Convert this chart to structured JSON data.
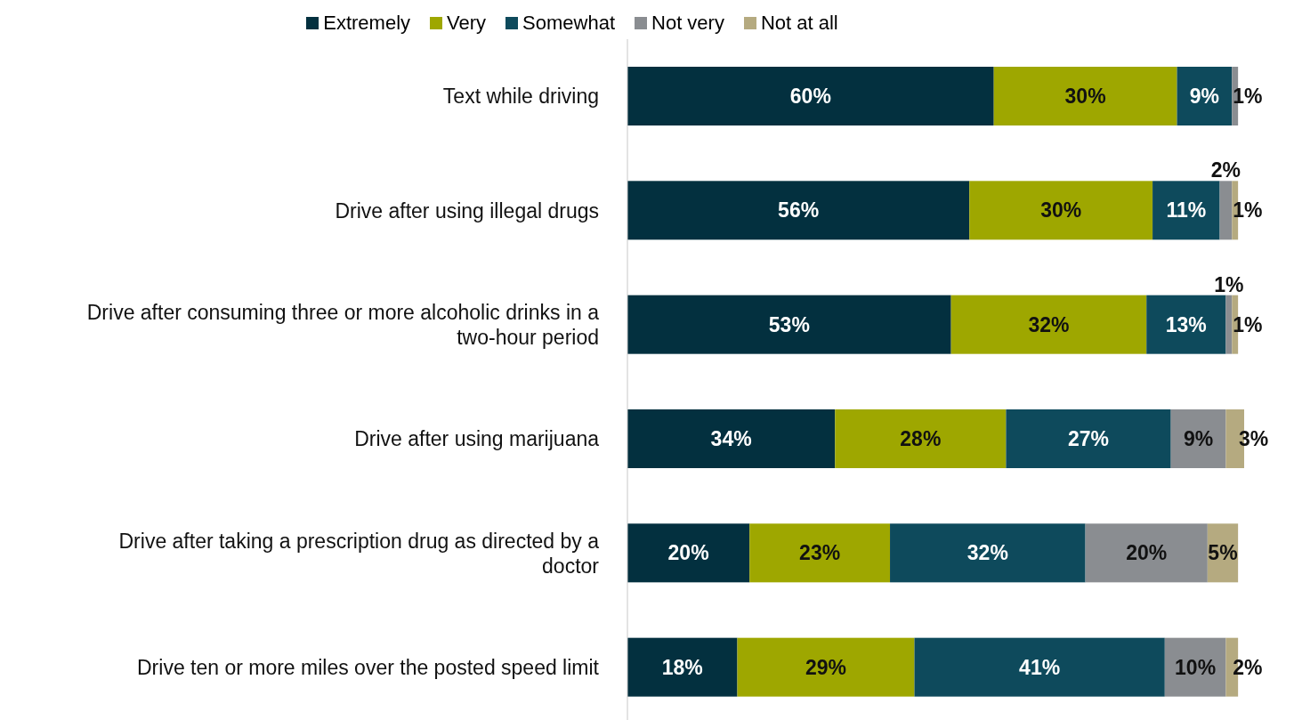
{
  "chart_data": {
    "type": "bar",
    "orientation": "horizontal",
    "stacked": true,
    "legend": "top",
    "categories": [
      "Text while driving",
      "Drive after using illegal drugs",
      "Drive after consuming three or more alcoholic drinks in a two-hour period",
      "Drive after using marijuana",
      "Drive after taking a prescription drug as directed by a doctor",
      "Drive ten or more miles over the posted speed limit"
    ],
    "series": [
      {
        "name": "Extremely",
        "color": "#03303f",
        "values": [
          60,
          56,
          53,
          34,
          20,
          18
        ],
        "value_labels": [
          "60%",
          "56%",
          "53%",
          "34%",
          "20%",
          "18%"
        ]
      },
      {
        "name": "Very",
        "color": "#9ea700",
        "values": [
          30,
          30,
          32,
          28,
          23,
          29
        ],
        "value_labels": [
          "30%",
          "30%",
          "32%",
          "28%",
          "23%",
          "29%"
        ]
      },
      {
        "name": "Somewhat",
        "color": "#0e4a5c",
        "values": [
          9,
          11,
          13,
          27,
          32,
          41
        ],
        "value_labels": [
          "9%",
          "11%",
          "13%",
          "27%",
          "32%",
          "41%"
        ]
      },
      {
        "name": "Not very",
        "color": "#8a8d91",
        "values": [
          1,
          2,
          1,
          9,
          20,
          10
        ],
        "value_labels": [
          "1%",
          "2%",
          "1%",
          "9%",
          "20%",
          "10%"
        ]
      },
      {
        "name": "Not at all",
        "color": "#b5aa80",
        "values": [
          0,
          1,
          1,
          3,
          5,
          2
        ],
        "value_labels": [
          null,
          "1%",
          "1%",
          "3%",
          "5%",
          "2%"
        ]
      }
    ]
  }
}
